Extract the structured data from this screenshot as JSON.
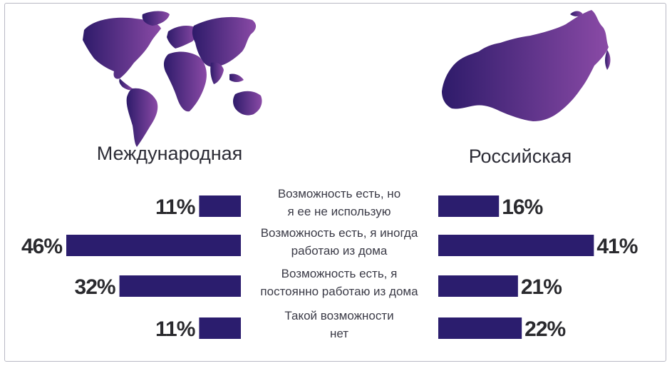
{
  "colors": {
    "bar": "#2b1d6e",
    "map_start": "#2e1b6a",
    "map_end": "#8a4aa6"
  },
  "icons": {
    "world": "world-map-icon",
    "russia": "russia-map-icon"
  },
  "chart_data": {
    "type": "bar",
    "orientation": "horizontal",
    "layout": "back-to-back",
    "categories": [
      [
        "Возможность есть, но",
        "я ее не использую"
      ],
      [
        "Возможность есть, я иногда",
        "работаю из дома"
      ],
      [
        "Возможность есть, я",
        "постоянно работаю из дома"
      ],
      [
        "Такой возможности",
        "нет"
      ]
    ],
    "series": [
      {
        "name": "Международная",
        "side": "left",
        "values": [
          11,
          46,
          32,
          11
        ],
        "labels": [
          "11%",
          "46%",
          "32%",
          "11%"
        ]
      },
      {
        "name": "Российская",
        "side": "right",
        "values": [
          16,
          41,
          21,
          22
        ],
        "labels": [
          "16%",
          "41%",
          "21%",
          "22%"
        ]
      }
    ],
    "unit": "%",
    "xlim": [
      0,
      46
    ]
  }
}
